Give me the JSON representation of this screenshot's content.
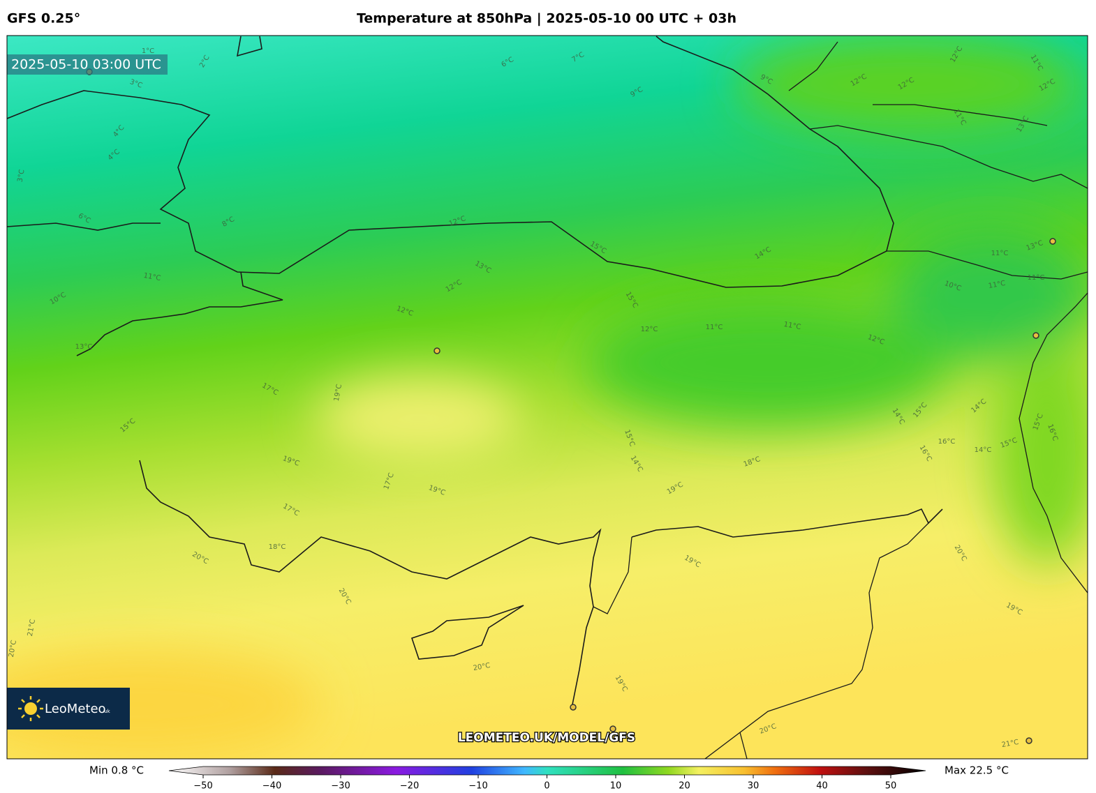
{
  "header": {
    "model": "GFS 0.25°",
    "title": "Temperature at 850hPa | 2025-05-10 00 UTC + 03h"
  },
  "map": {
    "valid_time": "2025-05-10 03:00 UTC",
    "watermark": "LEOMETEO.UK/MODEL/GFS",
    "logo": {
      "name": "LeoMeteo",
      "suffix": ".uk"
    },
    "contour_labels": [
      "1°C",
      "2°C",
      "3°C",
      "4°C",
      "4°C",
      "3°C",
      "6°C",
      "8°C",
      "6°C",
      "7°C",
      "9°C",
      "9°C",
      "12°C",
      "11°C",
      "12°C",
      "12°C",
      "12°C",
      "11°C",
      "13°C",
      "12°C",
      "11°C",
      "10°C",
      "13°C",
      "15°C",
      "14°C",
      "13°C",
      "12°C",
      "12°C",
      "15°C",
      "12°C",
      "11°C",
      "11°C",
      "12°C",
      "11°C",
      "13°C",
      "10°C",
      "11°C",
      "11°C",
      "17°C",
      "19°C",
      "15°C",
      "19°C",
      "17°C",
      "19°C",
      "15°C",
      "14°C",
      "18°C",
      "19°C",
      "14°C",
      "15°C",
      "14°C",
      "16°C",
      "16°C",
      "14°C",
      "15°C",
      "15°C",
      "16°C",
      "17°C",
      "18°C",
      "20°C",
      "19°C",
      "20°C",
      "20°C",
      "19°C",
      "21°C",
      "20°C",
      "20°C",
      "19°C",
      "20°C",
      "21°C"
    ]
  },
  "colorbar": {
    "min_label": "Min 0.8 °C",
    "max_label": "Max 22.5 °C",
    "range": [
      -50,
      50
    ],
    "ticks": [
      {
        "value": -50,
        "label": "−50"
      },
      {
        "value": -40,
        "label": "−40"
      },
      {
        "value": -30,
        "label": "−30"
      },
      {
        "value": -20,
        "label": "−20"
      },
      {
        "value": -10,
        "label": "−10"
      },
      0,
      10,
      20,
      30,
      40,
      50
    ]
  }
}
